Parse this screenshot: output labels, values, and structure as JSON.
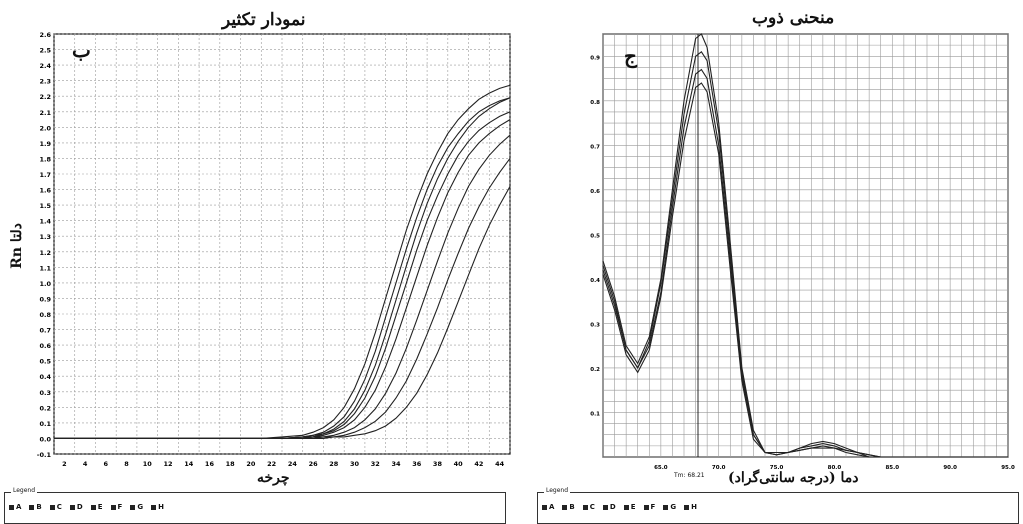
{
  "panels": {
    "left": {
      "title": "نمودار تکثیر",
      "letter": "ب",
      "ylabel": "Rn دلتا",
      "xlabel": "چرخه"
    },
    "right": {
      "title": "منحنی ذوب",
      "letter": "ج",
      "xlabel": "دما (درجه سانتی‌گراد)",
      "marker_label": "Tm: 68.21"
    }
  },
  "legend": {
    "caption": "Legend",
    "items": [
      "A",
      "B",
      "C",
      "D",
      "E",
      "F",
      "G",
      "H"
    ]
  },
  "colors": {
    "line": "#222222",
    "grid": "#9a9a9a",
    "axis": "#111111"
  },
  "chart_data": [
    {
      "type": "line",
      "title": "نمودار تکثیر",
      "xlabel": "چرخه",
      "ylabel": "Rn دلتا",
      "xlim": [
        1,
        45
      ],
      "ylim": [
        -0.1,
        2.6
      ],
      "xticks": [
        2,
        4,
        6,
        8,
        10,
        12,
        14,
        16,
        18,
        20,
        22,
        24,
        26,
        28,
        30,
        32,
        34,
        36,
        38,
        40,
        42,
        44
      ],
      "yticks": [
        -0.1,
        0.0,
        0.1,
        0.2,
        0.3,
        0.4,
        0.5,
        0.6,
        0.7,
        0.8,
        0.9,
        1.0,
        1.1,
        1.2,
        1.3,
        1.4,
        1.5,
        1.6,
        1.7,
        1.8,
        1.9,
        2.0,
        2.1,
        2.2,
        2.3,
        2.4,
        2.5,
        2.6
      ],
      "grid": true,
      "x": [
        1,
        3,
        5,
        7,
        9,
        11,
        13,
        15,
        17,
        19,
        21,
        23,
        25,
        26,
        27,
        28,
        29,
        30,
        31,
        32,
        33,
        34,
        35,
        36,
        37,
        38,
        39,
        40,
        41,
        42,
        43,
        44,
        45
      ],
      "series": [
        {
          "values": [
            0,
            0,
            0,
            0,
            0,
            0,
            0,
            0,
            0,
            0,
            0,
            0.01,
            0.02,
            0.04,
            0.07,
            0.12,
            0.2,
            0.32,
            0.48,
            0.68,
            0.9,
            1.12,
            1.34,
            1.53,
            1.7,
            1.84,
            1.96,
            2.05,
            2.12,
            2.18,
            2.22,
            2.25,
            2.27
          ]
        },
        {
          "values": [
            0,
            0,
            0,
            0,
            0,
            0,
            0,
            0,
            0,
            0,
            0,
            0,
            0.01,
            0.02,
            0.04,
            0.08,
            0.14,
            0.24,
            0.38,
            0.56,
            0.78,
            1.0,
            1.22,
            1.42,
            1.6,
            1.75,
            1.87,
            1.96,
            2.04,
            2.1,
            2.14,
            2.17,
            2.19
          ]
        },
        {
          "values": [
            0,
            0,
            0,
            0,
            0,
            0,
            0,
            0,
            0,
            0,
            0,
            0,
            0.01,
            0.02,
            0.03,
            0.06,
            0.11,
            0.19,
            0.31,
            0.47,
            0.67,
            0.89,
            1.11,
            1.32,
            1.51,
            1.67,
            1.8,
            1.91,
            2.0,
            2.07,
            2.12,
            2.16,
            2.19
          ]
        },
        {
          "values": [
            0,
            0,
            0,
            0,
            0,
            0,
            0,
            0,
            0,
            0,
            0,
            0,
            0.01,
            0.01,
            0.03,
            0.05,
            0.09,
            0.16,
            0.26,
            0.4,
            0.58,
            0.79,
            1.0,
            1.21,
            1.4,
            1.56,
            1.7,
            1.82,
            1.91,
            1.98,
            2.03,
            2.07,
            2.1
          ]
        },
        {
          "values": [
            0,
            0,
            0,
            0,
            0,
            0,
            0,
            0,
            0,
            0,
            0,
            0,
            0,
            0.01,
            0.02,
            0.04,
            0.07,
            0.12,
            0.2,
            0.31,
            0.46,
            0.64,
            0.84,
            1.04,
            1.24,
            1.42,
            1.58,
            1.71,
            1.82,
            1.9,
            1.96,
            2.01,
            2.05
          ]
        },
        {
          "values": [
            0,
            0,
            0,
            0,
            0,
            0,
            0,
            0,
            0,
            0,
            0,
            0,
            0,
            0.01,
            0.01,
            0.02,
            0.04,
            0.07,
            0.12,
            0.19,
            0.29,
            0.42,
            0.58,
            0.76,
            0.95,
            1.14,
            1.32,
            1.48,
            1.62,
            1.73,
            1.82,
            1.89,
            1.95
          ]
        },
        {
          "values": [
            0,
            0,
            0,
            0,
            0,
            0,
            0,
            0,
            0,
            0,
            0,
            0,
            0,
            0,
            0.01,
            0.01,
            0.02,
            0.04,
            0.07,
            0.11,
            0.17,
            0.26,
            0.37,
            0.51,
            0.67,
            0.84,
            1.02,
            1.19,
            1.35,
            1.49,
            1.61,
            1.71,
            1.8
          ]
        },
        {
          "values": [
            0,
            0,
            0,
            0,
            0,
            0,
            0,
            0,
            0,
            0,
            0,
            0,
            0,
            0,
            0,
            0.01,
            0.01,
            0.02,
            0.03,
            0.05,
            0.08,
            0.13,
            0.2,
            0.29,
            0.41,
            0.55,
            0.71,
            0.88,
            1.05,
            1.22,
            1.37,
            1.5,
            1.62
          ]
        }
      ]
    },
    {
      "type": "line",
      "title": "منحنی ذوب",
      "xlabel": "دما (درجه سانتی‌گراد)",
      "xlim": [
        60.0,
        95.0
      ],
      "ylim": [
        0.0,
        0.95
      ],
      "xticks": [
        65.0,
        70.0,
        75.0,
        80.0,
        85.0,
        90.0,
        95.0
      ],
      "yticks": [
        0.1,
        0.2,
        0.3,
        0.4,
        0.5,
        0.6,
        0.7,
        0.8,
        0.9
      ],
      "grid": true,
      "marker": 68.21,
      "x": [
        60,
        61,
        62,
        63,
        64,
        65,
        66,
        67,
        68,
        68.5,
        69,
        70,
        71,
        72,
        73,
        74,
        75,
        76,
        77,
        78,
        79,
        80,
        81,
        82,
        83,
        84,
        85,
        86,
        87,
        88,
        89,
        90,
        91,
        92,
        93,
        94,
        95
      ],
      "series": [
        {
          "values": [
            0.44,
            0.36,
            0.25,
            0.21,
            0.27,
            0.4,
            0.6,
            0.8,
            0.94,
            0.95,
            0.92,
            0.75,
            0.48,
            0.2,
            0.06,
            0.01,
            0.01,
            0.01,
            0.02,
            0.03,
            0.035,
            0.03,
            0.02,
            0.01,
            0.005,
            0,
            0,
            0,
            0,
            0,
            0,
            0,
            0,
            0,
            0,
            0,
            0
          ]
        },
        {
          "values": [
            0.43,
            0.35,
            0.24,
            0.2,
            0.26,
            0.39,
            0.58,
            0.77,
            0.9,
            0.91,
            0.89,
            0.73,
            0.46,
            0.19,
            0.05,
            0.01,
            0.01,
            0.01,
            0.02,
            0.025,
            0.03,
            0.025,
            0.015,
            0.01,
            0.005,
            0,
            0,
            0,
            0,
            0,
            0,
            0,
            0,
            0,
            0,
            0,
            0
          ]
        },
        {
          "values": [
            0.42,
            0.34,
            0.24,
            0.2,
            0.25,
            0.37,
            0.56,
            0.74,
            0.86,
            0.87,
            0.85,
            0.7,
            0.44,
            0.18,
            0.05,
            0.01,
            0.005,
            0.01,
            0.015,
            0.02,
            0.025,
            0.02,
            0.015,
            0.01,
            0,
            0,
            0,
            0,
            0,
            0,
            0,
            0,
            0,
            0,
            0,
            0,
            0
          ]
        },
        {
          "values": [
            0.41,
            0.33,
            0.23,
            0.19,
            0.24,
            0.36,
            0.54,
            0.71,
            0.83,
            0.84,
            0.82,
            0.68,
            0.42,
            0.17,
            0.04,
            0.01,
            0.005,
            0.01,
            0.015,
            0.02,
            0.02,
            0.02,
            0.01,
            0.005,
            0,
            0,
            0,
            0,
            0,
            0,
            0,
            0,
            0,
            0,
            0,
            0,
            0
          ]
        }
      ]
    }
  ]
}
